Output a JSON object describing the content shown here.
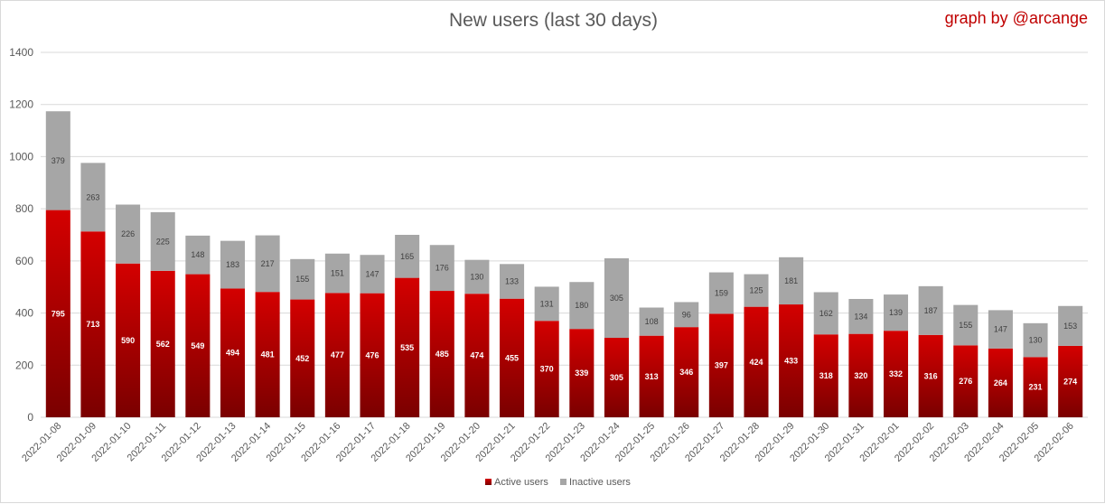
{
  "credit": "graph by @arcange",
  "colors": {
    "active_top": "#d40000",
    "active_bottom": "#7a0000",
    "inactive": "#a6a6a6",
    "grid": "#d9d9d9",
    "credit": "#c00000"
  },
  "chart_data": {
    "type": "bar",
    "stacked": true,
    "title": "New users (last 30 days)",
    "xlabel": "",
    "ylabel": "",
    "ylim": [
      0,
      1400
    ],
    "yticks": [
      0,
      200,
      400,
      600,
      800,
      1000,
      1200,
      1400
    ],
    "grid": true,
    "legend_position": "bottom",
    "categories": [
      "2022-01-08",
      "2022-01-09",
      "2022-01-10",
      "2022-01-11",
      "2022-01-12",
      "2022-01-13",
      "2022-01-14",
      "2022-01-15",
      "2022-01-16",
      "2022-01-17",
      "2022-01-18",
      "2022-01-19",
      "2022-01-20",
      "2022-01-21",
      "2022-01-22",
      "2022-01-23",
      "2022-01-24",
      "2022-01-25",
      "2022-01-26",
      "2022-01-27",
      "2022-01-28",
      "2022-01-29",
      "2022-01-30",
      "2022-01-31",
      "2022-02-01",
      "2022-02-02",
      "2022-02-03",
      "2022-02-04",
      "2022-02-05",
      "2022-02-06"
    ],
    "series": [
      {
        "name": "Active users",
        "values": [
          795,
          713,
          590,
          562,
          549,
          494,
          481,
          452,
          477,
          476,
          535,
          485,
          474,
          455,
          370,
          339,
          305,
          313,
          346,
          397,
          424,
          433,
          318,
          320,
          332,
          316,
          276,
          264,
          231,
          274
        ]
      },
      {
        "name": "Inactive users",
        "values": [
          379,
          263,
          226,
          225,
          148,
          183,
          217,
          155,
          151,
          147,
          165,
          176,
          130,
          133,
          131,
          180,
          305,
          108,
          96,
          159,
          125,
          181,
          162,
          134,
          139,
          187,
          155,
          147,
          130,
          153
        ]
      }
    ]
  }
}
